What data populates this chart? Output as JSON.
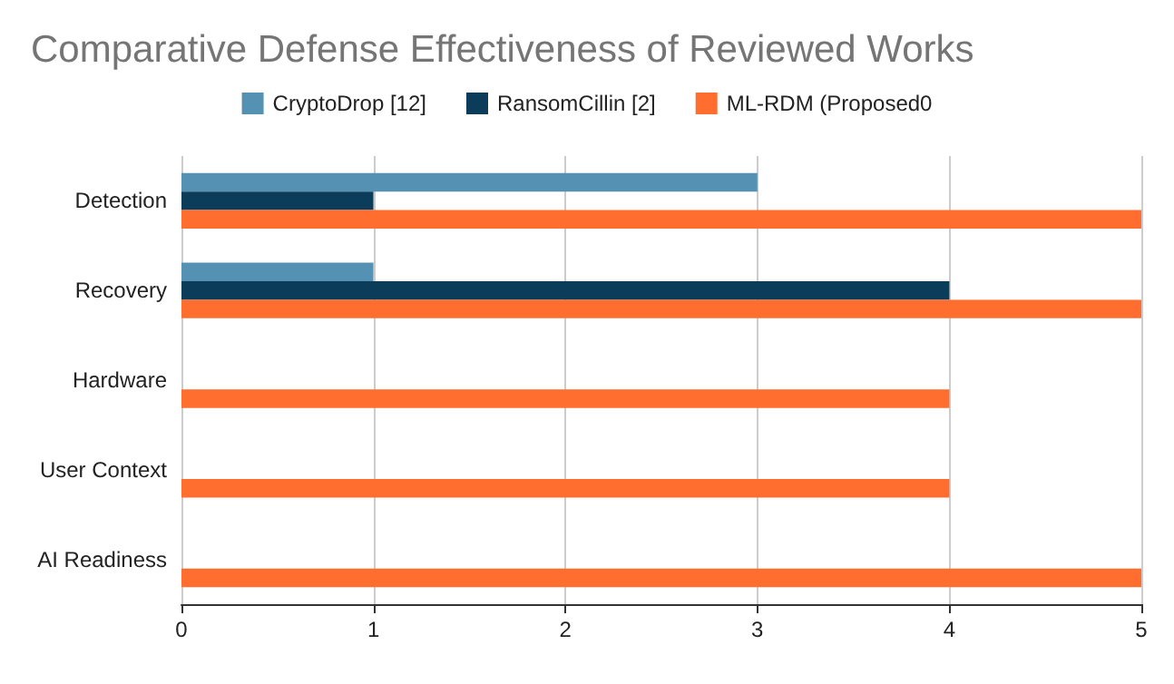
{
  "chart_data": {
    "type": "bar",
    "orientation": "horizontal",
    "title": "Comparative Defense Effectiveness of Reviewed Works",
    "categories": [
      "Detection",
      "Recovery",
      "Hardware",
      "User Context",
      "AI Readiness"
    ],
    "series": [
      {
        "name": "CryptoDrop [12]",
        "color": "#5591b3",
        "values": [
          3,
          1,
          0,
          0,
          0
        ]
      },
      {
        "name": "RansomCillin [2]",
        "color": "#0b3d5a",
        "values": [
          1,
          4,
          0,
          0,
          0
        ]
      },
      {
        "name": "ML-RDM (Proposed0",
        "color": "#ff6d2f",
        "values": [
          5,
          5,
          4,
          4,
          5
        ]
      }
    ],
    "xlim": [
      0,
      5
    ],
    "xticks": [
      0,
      1,
      2,
      3,
      4,
      5
    ],
    "grid": "x",
    "legend": "top"
  }
}
